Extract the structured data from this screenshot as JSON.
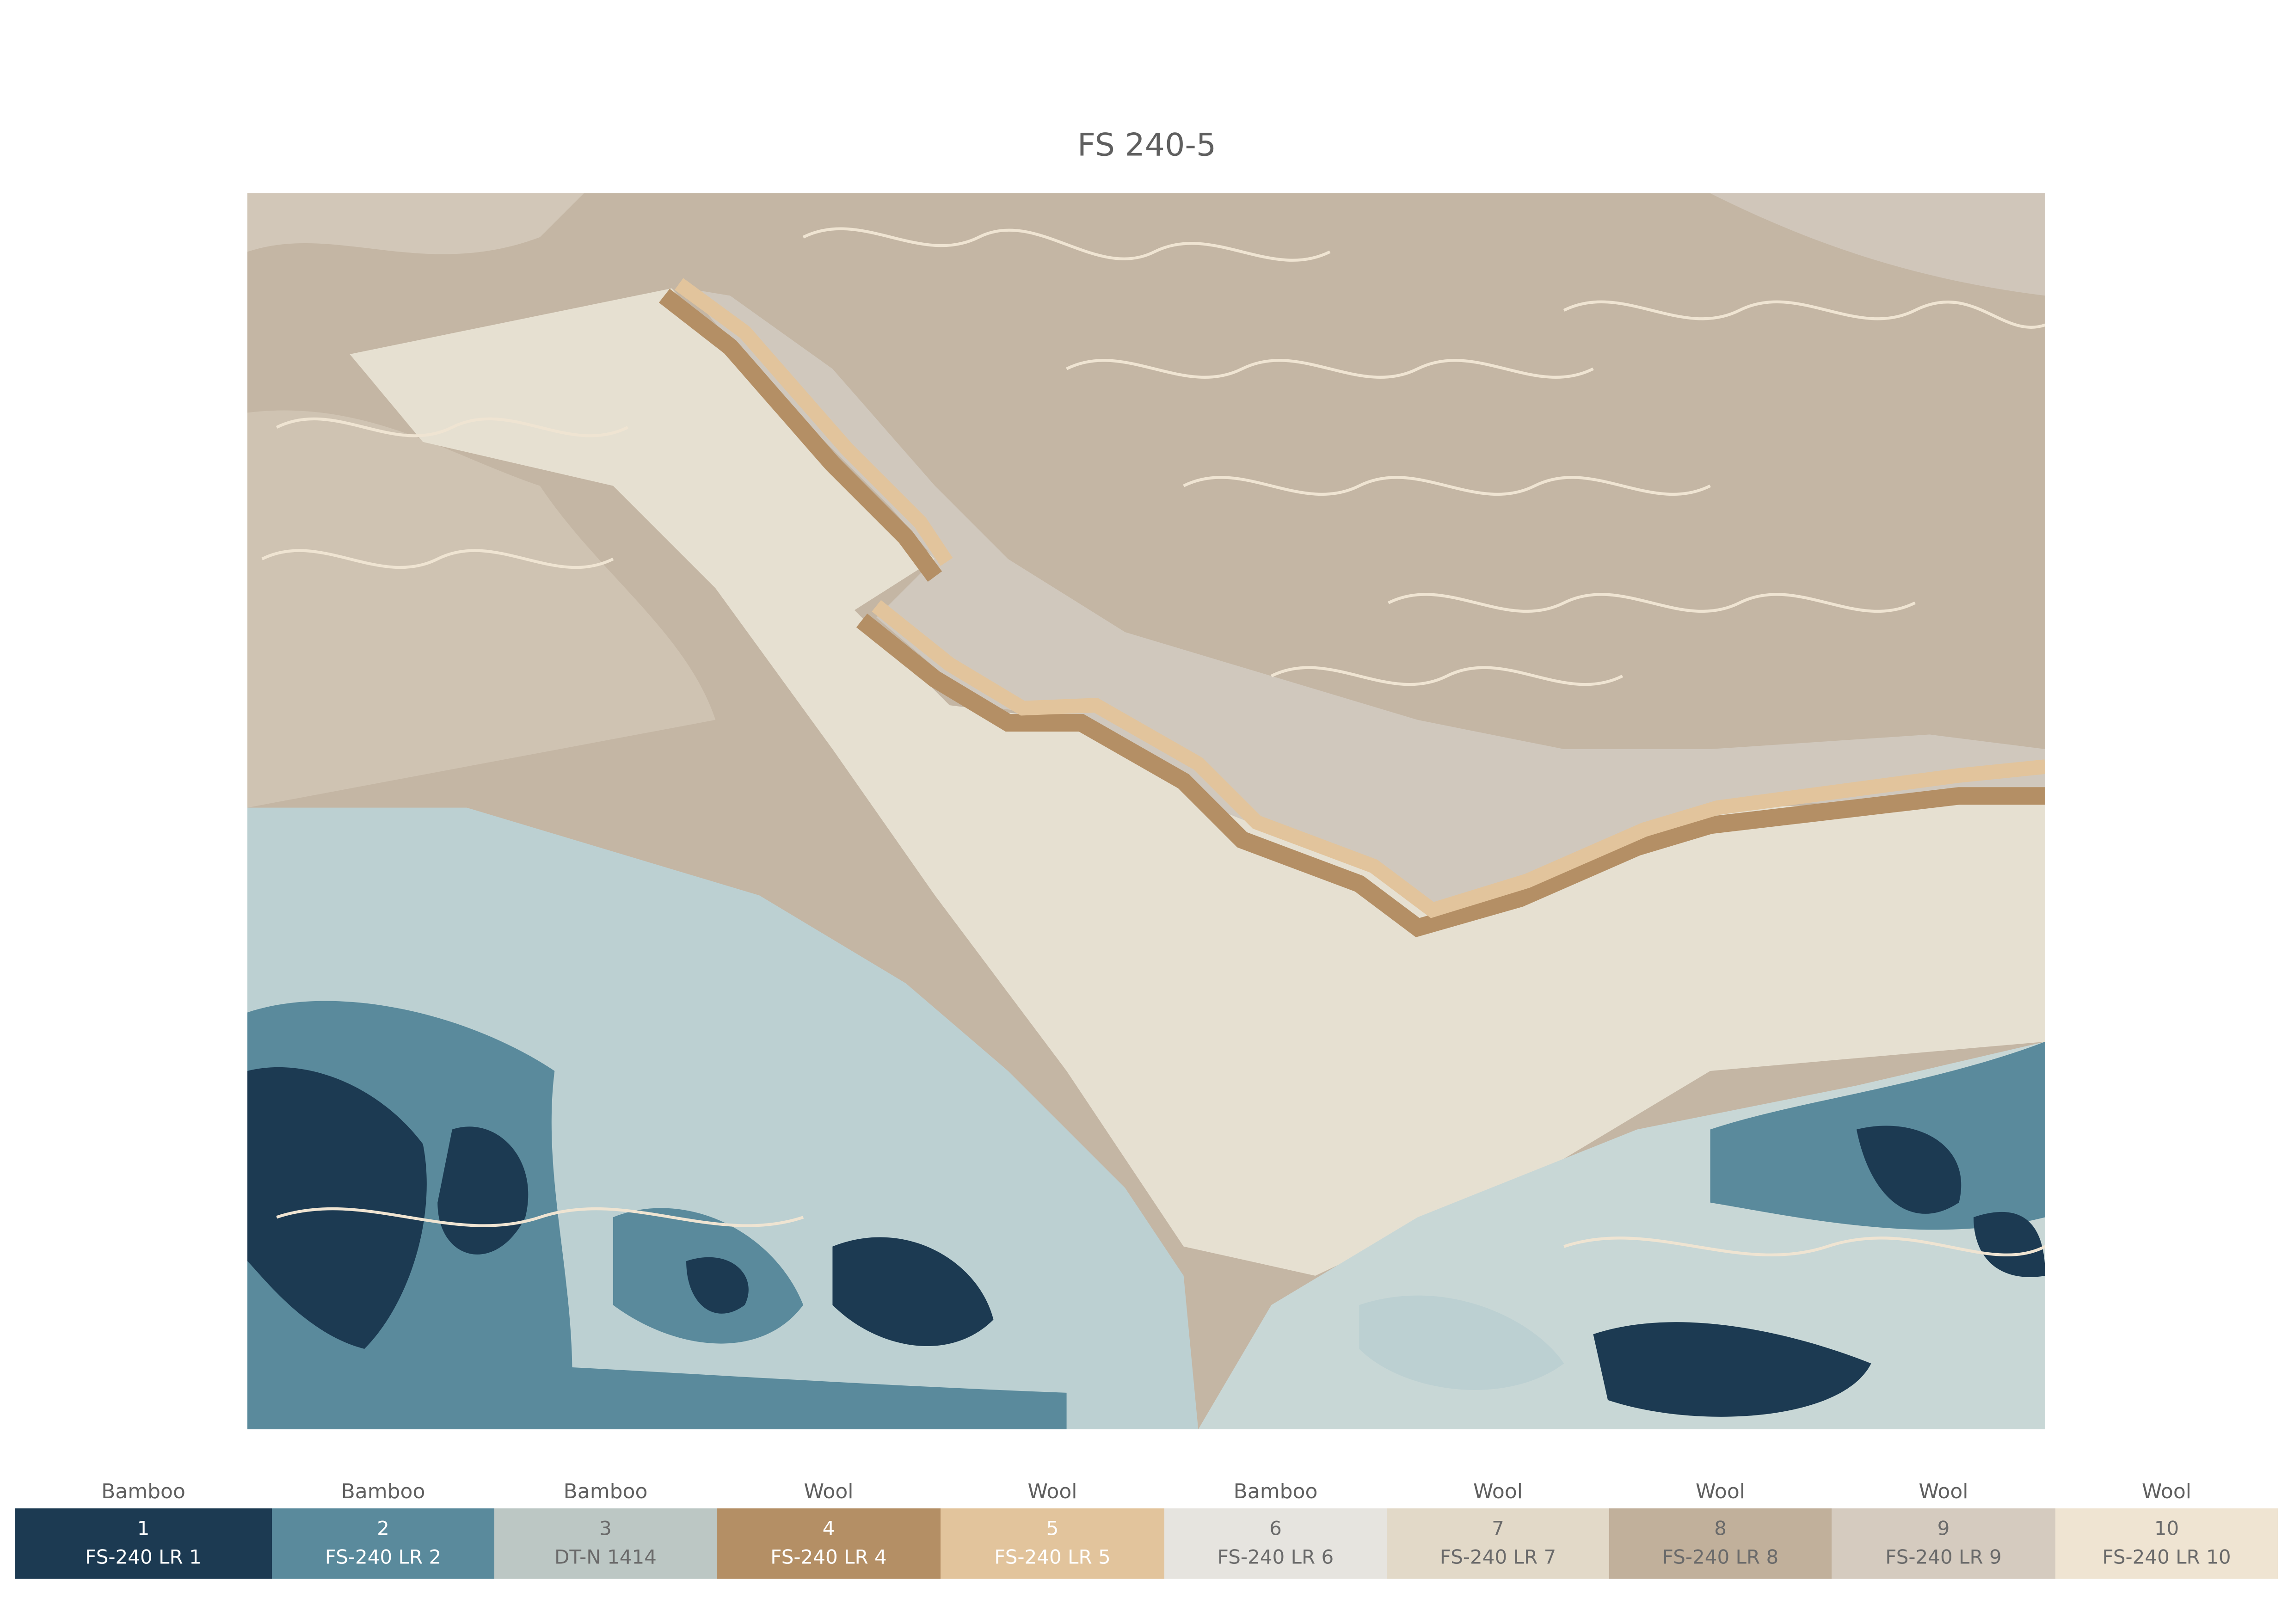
{
  "title": "FS 240-5",
  "swatches": [
    {
      "material": "Bamboo",
      "number": 1,
      "code": "FS-240 LR 1",
      "color": "#1c3a52"
    },
    {
      "material": "Bamboo",
      "number": 2,
      "code": "FS-240 LR 2",
      "color": "#5a8a9c"
    },
    {
      "material": "Bamboo",
      "number": 3,
      "code": "DT-N 1414",
      "color": "#bcc7c4"
    },
    {
      "material": "Wool",
      "number": 4,
      "code": "FS-240 LR 4",
      "color": "#b48f65"
    },
    {
      "material": "Wool",
      "number": 5,
      "code": "FS-240 LR 5",
      "color": "#e2c49c"
    },
    {
      "material": "Bamboo",
      "number": 6,
      "code": "FS-240 LR 6",
      "color": "#e6e4df"
    },
    {
      "material": "Wool",
      "number": 7,
      "code": "FS-240 LR 7",
      "color": "#e2d9c8"
    },
    {
      "material": "Wool",
      "number": 8,
      "code": "FS-240 LR 8",
      "color": "#c1b09b"
    },
    {
      "material": "Wool",
      "number": 9,
      "code": "FS-240 LR 9",
      "color": "#d5cbbf"
    },
    {
      "material": "Wool",
      "number": 10,
      "code": "FS-240 LR 10",
      "color": "#efe4d2"
    }
  ]
}
